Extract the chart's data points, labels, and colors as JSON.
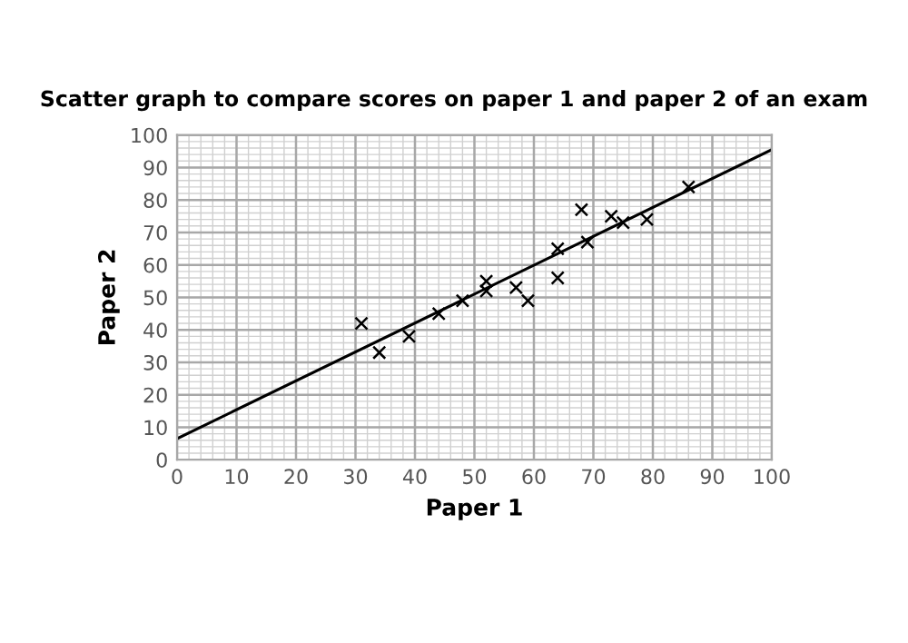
{
  "chart_data": {
    "type": "scatter",
    "title": "Scatter graph to compare scores on paper 1 and paper 2 of an exam",
    "xlabel": "Paper 1",
    "ylabel": "Paper 2",
    "series": [
      {
        "color": "#000000",
        "marker": "cross",
        "x": [
          31,
          34,
          39,
          44,
          48,
          52,
          52,
          57,
          59,
          64,
          64,
          68,
          69,
          73,
          75,
          79,
          86
        ],
        "values": [
          42,
          33,
          38,
          45,
          49,
          55,
          52,
          53,
          49,
          65,
          56,
          77,
          67,
          75,
          73,
          74,
          84
        ]
      },
      {
        "type": "line",
        "color": "#000000",
        "marker": "none",
        "x": [
          0,
          100
        ],
        "values": [
          6.5,
          95.5
        ]
      }
    ],
    "xlim": [
      0,
      100
    ],
    "ylim": [
      0,
      100
    ],
    "xticks": [
      0,
      10,
      20,
      30,
      40,
      50,
      60,
      70,
      80,
      90,
      100
    ],
    "yticks": [
      0,
      10,
      20,
      30,
      40,
      50,
      60,
      70,
      80,
      90,
      100
    ],
    "grid": true,
    "legend": false
  }
}
